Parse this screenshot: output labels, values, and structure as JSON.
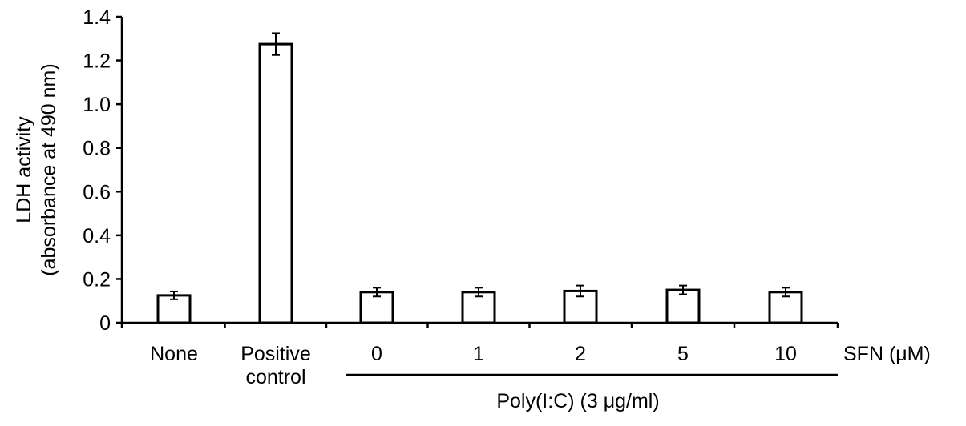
{
  "chart_data": {
    "type": "bar",
    "categories": [
      [
        "None"
      ],
      [
        "Positive",
        "control"
      ],
      [
        "0"
      ],
      [
        "1"
      ],
      [
        "2"
      ],
      [
        "5"
      ],
      [
        "10"
      ]
    ],
    "values": [
      0.125,
      1.275,
      0.14,
      0.14,
      0.145,
      0.15,
      0.14
    ],
    "errors": [
      0.018,
      0.05,
      0.02,
      0.02,
      0.025,
      0.02,
      0.02
    ],
    "ylabel_lines": [
      "LDH activity",
      "(absorbance at 490 nm)"
    ],
    "ylim": [
      0,
      1.4
    ],
    "yticks": [
      0,
      0.2,
      0.4,
      0.6,
      0.8,
      1.0,
      1.2,
      1.4
    ],
    "ytick_labels": [
      "0",
      "0.2",
      "0.4",
      "0.6",
      "0.8",
      "1.0",
      "1.2",
      "1.4"
    ],
    "x_side_label": "SFN (μM)",
    "group_label": "Poly(I:C) (3 μg/ml)",
    "group_span": [
      "0",
      "10"
    ],
    "grid": false,
    "bar_fill": "#ffffff",
    "bar_stroke": "#000000"
  }
}
